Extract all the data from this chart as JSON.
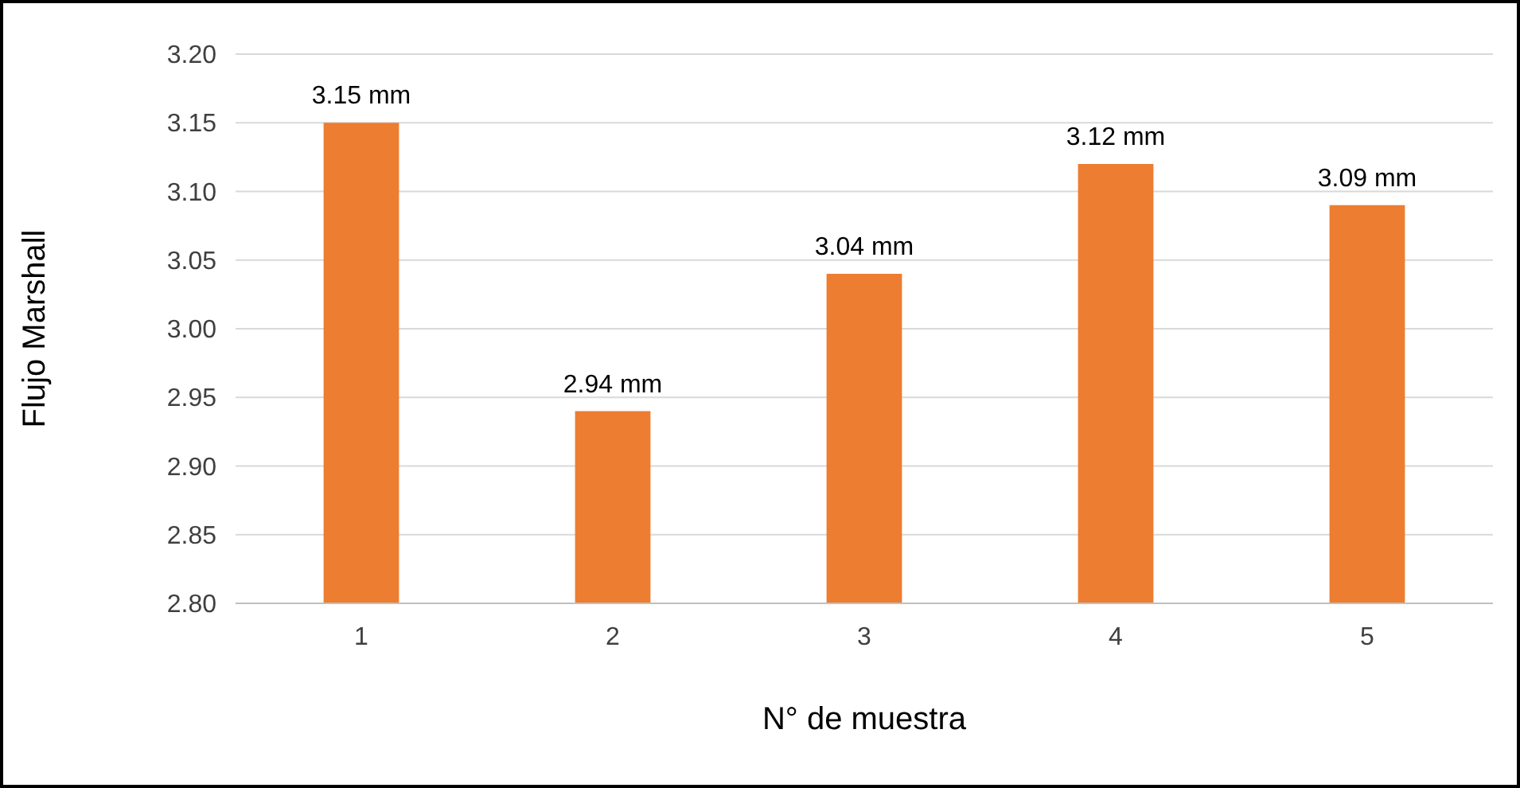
{
  "chart_data": {
    "type": "bar",
    "xlabel": "N° de muestra",
    "ylabel": "Flujo Marshall",
    "categories": [
      "1",
      "2",
      "3",
      "4",
      "5"
    ],
    "values": [
      3.15,
      2.94,
      3.04,
      3.12,
      3.09
    ],
    "value_labels": [
      "3.15 mm",
      "2.94 mm",
      "3.04 mm",
      "3.12 mm",
      "3.09 mm"
    ],
    "color": "#ed7d31",
    "ylim": [
      2.8,
      3.2
    ],
    "yticks": [
      {
        "value": 2.8,
        "label": "2.80"
      },
      {
        "value": 2.85,
        "label": "2.85"
      },
      {
        "value": 2.9,
        "label": "2.90"
      },
      {
        "value": 2.95,
        "label": "2.95"
      },
      {
        "value": 3.0,
        "label": "3.00"
      },
      {
        "value": 3.05,
        "label": "3.05"
      },
      {
        "value": 3.1,
        "label": "3.10"
      },
      {
        "value": 3.15,
        "label": "3.15"
      },
      {
        "value": 3.2,
        "label": "3.20"
      }
    ],
    "grid": "y"
  }
}
